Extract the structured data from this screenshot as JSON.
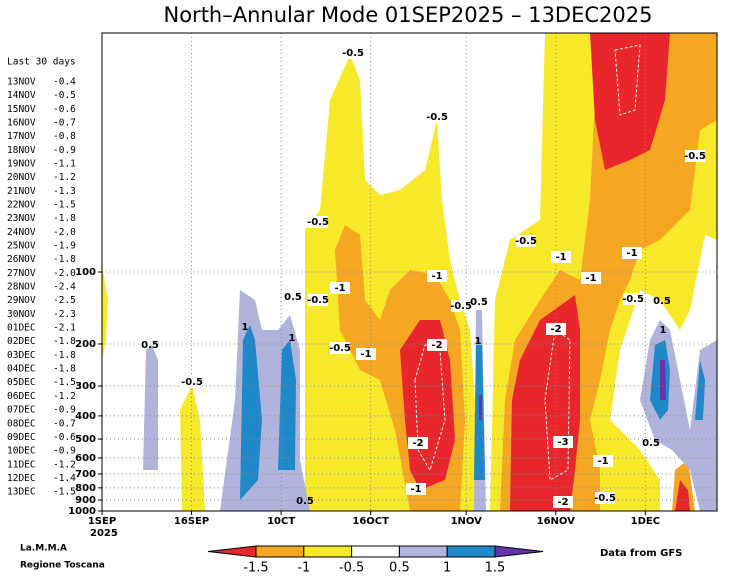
{
  "chart_data": {
    "type": "contour",
    "title": "North–Annular Mode 01SEP2025 – 13DEC2025",
    "xlim": [
      0,
      103
    ],
    "xticks": [
      {
        "value": 0,
        "label": "1SEP"
      },
      {
        "value": 15,
        "label": "16SEP"
      },
      {
        "value": 30,
        "label": "10CT"
      },
      {
        "value": 45,
        "label": "16OCT"
      },
      {
        "value": 61,
        "label": "1NOV"
      },
      {
        "value": 76,
        "label": "16NOV"
      },
      {
        "value": 91,
        "label": "1DEC"
      }
    ],
    "x_year_label": "2025",
    "ylim": [
      1000,
      10
    ],
    "log_y": true,
    "yticks": [
      100,
      200,
      300,
      400,
      500,
      600,
      700,
      800,
      900,
      1000
    ],
    "grid": true,
    "levels": [
      -1.5,
      -1,
      -0.5,
      0.5,
      1,
      1.5
    ],
    "colors": [
      "#e8262b",
      "#f5a623",
      "#f7e92a",
      "#ffffff",
      "#b0b4dc",
      "#1e88c8",
      "#6633aa"
    ],
    "contour_labels": [
      -0.5,
      -0.5,
      -0.5,
      -0.5,
      -0.5,
      -1,
      -1,
      -1,
      -1,
      -1,
      0.5,
      -0.5,
      -0.5,
      0.5,
      -0.5,
      0.5,
      1,
      1,
      -2,
      1,
      0.5,
      -0.5,
      -1,
      -2,
      1,
      -0.5,
      -2,
      -3,
      0.5,
      -1,
      -1,
      0.5,
      -2,
      -0.5
    ],
    "last30_title": "Last 30 days",
    "last30": [
      [
        "13NOV",
        "-0.4"
      ],
      [
        "14NOV",
        "-0.5"
      ],
      [
        "15NOV",
        "-0.6"
      ],
      [
        "16NOV",
        "-0.7"
      ],
      [
        "17NOV",
        "-0.8"
      ],
      [
        "18NOV",
        "-0.9"
      ],
      [
        "19NOV",
        "-1.1"
      ],
      [
        "20NOV",
        "-1.2"
      ],
      [
        "21NOV",
        "-1.3"
      ],
      [
        "22NOV",
        "-1.5"
      ],
      [
        "23NOV",
        "-1.8"
      ],
      [
        "24NOV",
        "-2.0"
      ],
      [
        "25NOV",
        "-1.9"
      ],
      [
        "26NOV",
        "-1.8"
      ],
      [
        "27NOV",
        "-2.0"
      ],
      [
        "28NOV",
        "-2.4"
      ],
      [
        "29NOV",
        "-2.5"
      ],
      [
        "30NOV",
        "-2.3"
      ],
      [
        "01DEC",
        "-2.1"
      ],
      [
        "02DEC",
        "-1.8"
      ],
      [
        "03DEC",
        "-1.8"
      ],
      [
        "04DEC",
        "-1.8"
      ],
      [
        "05DEC",
        "-1.5"
      ],
      [
        "06DEC",
        "-1.2"
      ],
      [
        "07DEC",
        "-0.9"
      ],
      [
        "08DEC",
        "-0.7"
      ],
      [
        "09DEC",
        "-0.6"
      ],
      [
        "10DEC",
        "-0.9"
      ],
      [
        "11DEC",
        "-1.2"
      ],
      [
        "12DEC",
        "-1.4"
      ],
      [
        "13DEC",
        "-1.5"
      ]
    ],
    "footer_left": [
      "La.M.M.A",
      "Regione Toscana"
    ],
    "footer_right": "Data from GFS"
  }
}
